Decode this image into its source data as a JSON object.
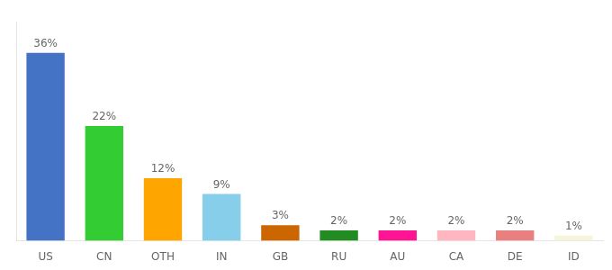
{
  "chart_data": {
    "type": "bar",
    "categories": [
      "US",
      "CN",
      "OTH",
      "IN",
      "GB",
      "RU",
      "AU",
      "CA",
      "DE",
      "ID"
    ],
    "values": [
      36,
      22,
      12,
      9,
      3,
      2,
      2,
      2,
      2,
      1
    ],
    "value_labels": [
      "36%",
      "22%",
      "12%",
      "9%",
      "3%",
      "2%",
      "2%",
      "2%",
      "2%",
      "1%"
    ],
    "data_labels": true,
    "colors": [
      "#4472C4",
      "#33CC33",
      "#FFA500",
      "#87CEEB",
      "#CC6600",
      "#228B22",
      "#FF1493",
      "#FFB6C1",
      "#E88080",
      "#F5F5DC"
    ],
    "ylim": [
      0,
      42
    ],
    "tick_labels": "x",
    "grid": false
  }
}
